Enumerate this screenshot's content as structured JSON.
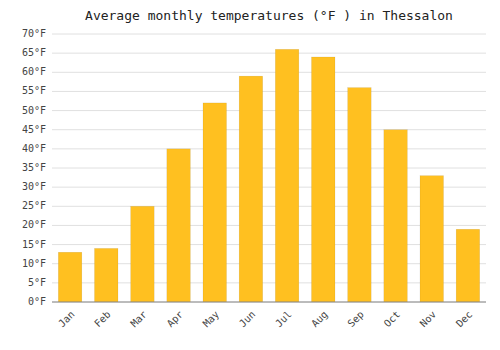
{
  "chart_data": {
    "type": "bar",
    "title": "Average monthly temperatures (°F ) in Thessalon",
    "categories": [
      "Jan",
      "Feb",
      "Mar",
      "Apr",
      "May",
      "Jun",
      "Jul",
      "Aug",
      "Sep",
      "Oct",
      "Nov",
      "Dec"
    ],
    "values": [
      13,
      14,
      25,
      40,
      52,
      59,
      66,
      64,
      56,
      45,
      33,
      19
    ],
    "color": "#FFC020",
    "ylim": [
      0,
      70
    ],
    "yticks": [
      {
        "value": 0,
        "label": "0°F"
      },
      {
        "value": 5,
        "label": "5°F"
      },
      {
        "value": 10,
        "label": "10°F"
      },
      {
        "value": 15,
        "label": "15°F"
      },
      {
        "value": 20,
        "label": "20°F"
      },
      {
        "value": 25,
        "label": "25°F"
      },
      {
        "value": 30,
        "label": "30°F"
      },
      {
        "value": 35,
        "label": "35°F"
      },
      {
        "value": 40,
        "label": "40°F"
      },
      {
        "value": 45,
        "label": "45°F"
      },
      {
        "value": 50,
        "label": "50°F"
      },
      {
        "value": 55,
        "label": "55°F"
      },
      {
        "value": 60,
        "label": "60°F"
      },
      {
        "value": 65,
        "label": "65°F"
      },
      {
        "value": 70,
        "label": "70°F"
      }
    ],
    "grid": true
  }
}
